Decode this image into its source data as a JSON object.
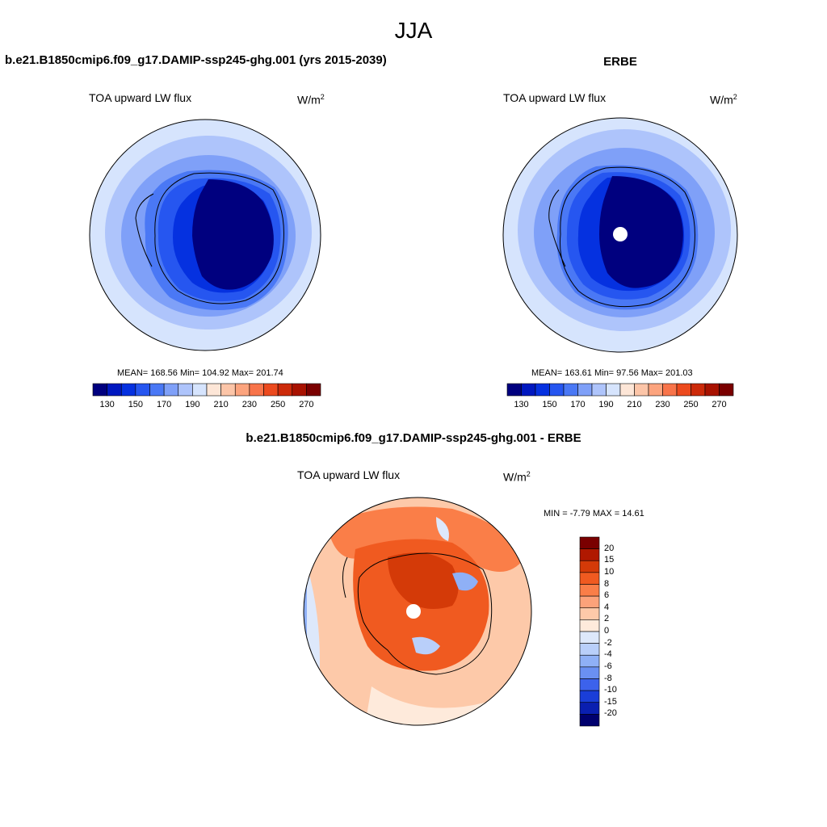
{
  "page": {
    "title": "JJA",
    "left_title": "b.e21.B1850cmip6.f09_g17.DAMIP-ssp245-ghg.001 (yrs 2015-2039)",
    "right_title": "ERBE",
    "diff_title": "b.e21.B1850cmip6.f09_g17.DAMIP-ssp245-ghg.001 - ERBE"
  },
  "chart_data": [
    {
      "type": "heatmap",
      "projection": "south-polar-stereographic",
      "variable_label": "TOA upward LW flux",
      "units": "W/m",
      "units_sup": "2",
      "stats": {
        "mean": 168.56,
        "min": 104.92,
        "max": 201.74
      },
      "stats_text": "MEAN= 168.56  Min= 104.92  Max= 201.74",
      "colorbar": {
        "orientation": "horizontal",
        "levels": [
          130,
          140,
          150,
          160,
          170,
          180,
          190,
          200,
          210,
          220,
          230,
          240,
          250,
          260,
          270
        ],
        "tick_labels": [
          "130",
          "150",
          "170",
          "190",
          "210",
          "230",
          "250",
          "270"
        ]
      }
    },
    {
      "type": "heatmap",
      "projection": "south-polar-stereographic",
      "variable_label": "TOA upward LW flux",
      "units": "W/m",
      "units_sup": "2",
      "stats": {
        "mean": 163.61,
        "min": 97.56,
        "max": 201.03
      },
      "stats_text": "MEAN= 163.61  Min=  97.56  Max= 201.03",
      "missing_pole": true,
      "colorbar": {
        "orientation": "horizontal",
        "levels": [
          130,
          140,
          150,
          160,
          170,
          180,
          190,
          200,
          210,
          220,
          230,
          240,
          250,
          260,
          270
        ],
        "tick_labels": [
          "130",
          "150",
          "170",
          "190",
          "210",
          "230",
          "250",
          "270"
        ]
      }
    },
    {
      "type": "heatmap",
      "projection": "south-polar-stereographic",
      "variable_label": "TOA upward LW flux",
      "units": "W/m",
      "units_sup": "2",
      "stats": {
        "min": -7.79,
        "max": 14.61
      },
      "stats_text": "MIN =  -7.79 MAX =  14.61",
      "colorbar": {
        "orientation": "vertical",
        "levels": [
          -20,
          -15,
          -10,
          -8,
          -6,
          -4,
          -2,
          0,
          2,
          4,
          6,
          8,
          10,
          15,
          20
        ],
        "tick_labels": [
          "20",
          "15",
          "10",
          "8",
          "6",
          "4",
          "2",
          "0",
          "-2",
          "-4",
          "-6",
          "-8",
          "-10",
          "-15",
          "-20"
        ]
      }
    }
  ],
  "colors": {
    "abs_palette": [
      "#00007f",
      "#0018c0",
      "#0531e0",
      "#2656f0",
      "#4a78f5",
      "#7fa0f8",
      "#aec4fb",
      "#d6e4fd",
      "#fde6d7",
      "#fcc5a8",
      "#fca47e",
      "#f8744a",
      "#ec4a1e",
      "#cc2a0a",
      "#a81200",
      "#7a0000"
    ],
    "diff_palette": [
      "#7a0000",
      "#b01800",
      "#d43a08",
      "#f05a20",
      "#fa7e48",
      "#fca27a",
      "#fdc9a9",
      "#feeadb",
      "#dde8fb",
      "#b9cffa",
      "#8fb0f6",
      "#6a90f2",
      "#3c62ec",
      "#1a3ed8",
      "#0a1fb0",
      "#00006e"
    ]
  }
}
